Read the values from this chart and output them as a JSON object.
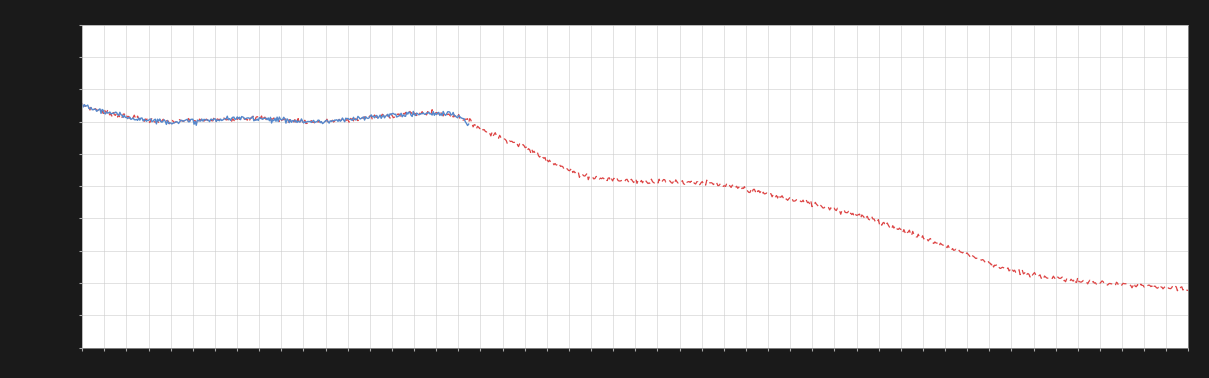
{
  "background_color": "#1a1a1a",
  "axes_facecolor": "#ffffff",
  "grid_color": "#cccccc",
  "line1_color": "#5588cc",
  "line2_color": "#dd4444",
  "xlim": [
    0,
    50
  ],
  "ylim": [
    0,
    10
  ],
  "n_x_grid": 50,
  "n_y_grid": 10,
  "tick_label_color": "#aaaaaa",
  "spine_color": "#aaaaaa"
}
